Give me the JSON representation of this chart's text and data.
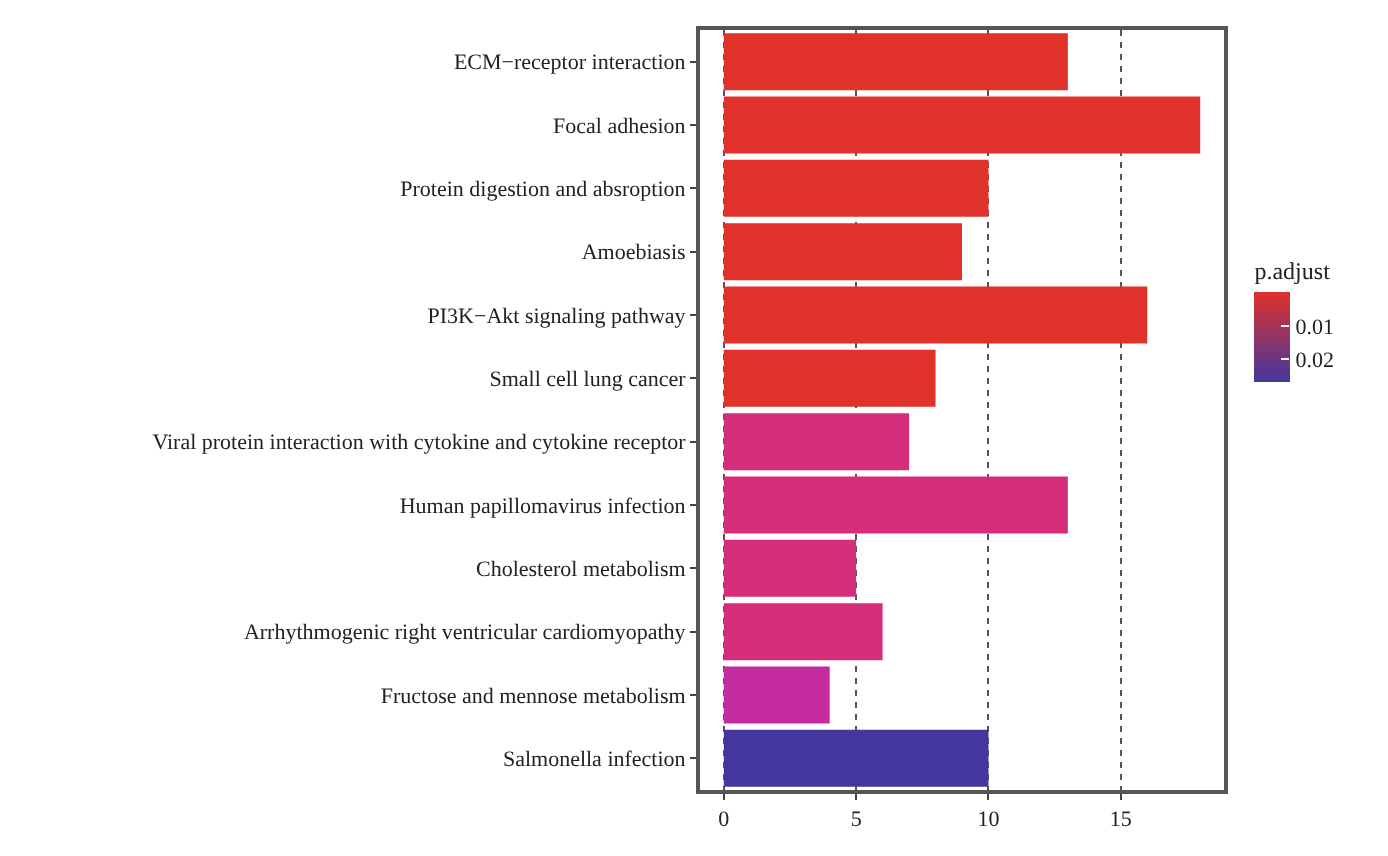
{
  "chart_data": {
    "type": "bar",
    "orientation": "horizontal",
    "categories": [
      "ECM−receptor interaction",
      "Focal adhesion",
      "Protein digestion and absroption",
      "Amoebiasis",
      "PI3K−Akt signaling pathway",
      "Small cell lung cancer",
      "Viral protein interaction with cytokine and cytokine receptor",
      "Human papillomavirus infection",
      "Cholesterol metabolism",
      "Arrhythmogenic right ventricular cardiomyopathy",
      "Fructose and mennose metabolism",
      "Salmonella infection"
    ],
    "values": [
      13,
      18,
      10,
      9,
      16,
      8,
      7,
      13,
      5,
      6,
      4,
      10
    ],
    "colors": [
      "#e0312b",
      "#e0312b",
      "#e0312b",
      "#e0312b",
      "#e0312b",
      "#e0312b",
      "#d62d7b",
      "#d62d7b",
      "#d62d7b",
      "#d62d7b",
      "#c62ba0",
      "#43379e"
    ],
    "xlim": [
      -0.9,
      18.9
    ],
    "xticks": [
      0,
      5,
      10,
      15
    ],
    "clabel": "p.adjust",
    "clim": [
      0,
      0.027
    ],
    "cticks": [
      0.01,
      0.02
    ],
    "grid": "x"
  }
}
